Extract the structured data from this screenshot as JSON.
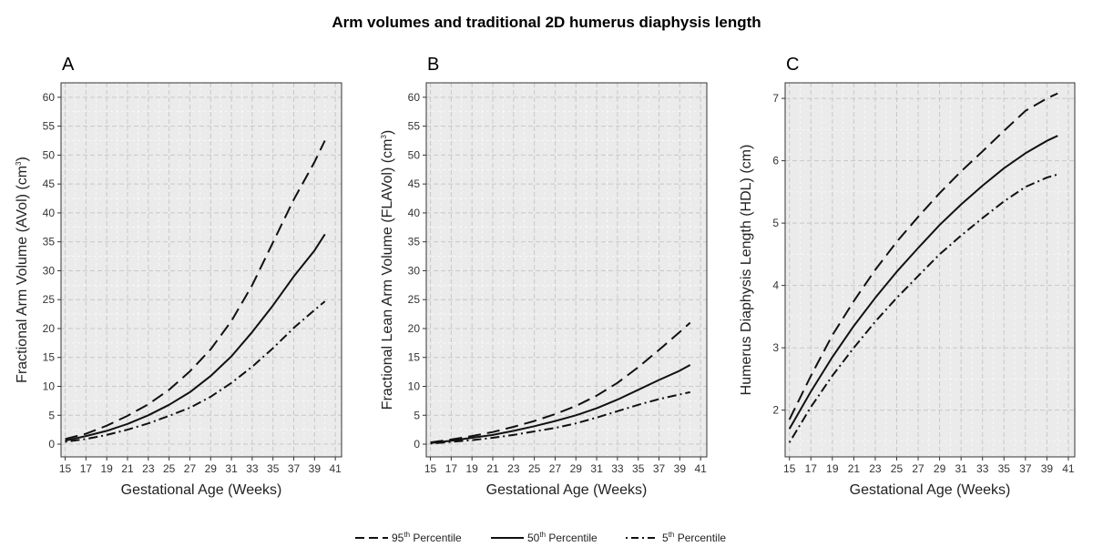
{
  "figure": {
    "title": "Arm volumes and traditional 2D humerus diaphysis length"
  },
  "legend": [
    {
      "base": "95",
      "sup": "th",
      "rest": " Percentile",
      "style": "longdash"
    },
    {
      "base": "50",
      "sup": "th",
      "rest": " Percentile",
      "style": "solid"
    },
    {
      "base": "5",
      "sup": "th",
      "rest": " Percentile",
      "style": "dotdash"
    }
  ],
  "chart_data": [
    {
      "panel": "A",
      "type": "line",
      "xlabel": "Gestational Age (Weeks)",
      "ylabel_main": "Fractional Arm Volume (AVol)  (cm",
      "ylabel_sup": "3",
      "ylabel_end": ")",
      "xlim": [
        14.6,
        41.6
      ],
      "ylim": [
        -2.2,
        62.5
      ],
      "xticks": [
        15,
        17,
        19,
        21,
        23,
        25,
        27,
        29,
        31,
        33,
        35,
        37,
        39,
        41
      ],
      "yticks": [
        0,
        5,
        10,
        15,
        20,
        25,
        30,
        35,
        40,
        45,
        50,
        55,
        60
      ],
      "x": [
        15,
        17,
        19,
        21,
        23,
        25,
        27,
        29,
        31,
        33,
        35,
        37,
        39,
        40
      ],
      "series": [
        {
          "name": "95th Percentile",
          "style": "longdash",
          "values": [
            0.9,
            1.8,
            3.2,
            4.9,
            6.9,
            9.4,
            12.6,
            16.4,
            21.3,
            27.5,
            34.9,
            42.3,
            48.8,
            52.5
          ]
        },
        {
          "name": "50th Percentile",
          "style": "solid",
          "values": [
            0.6,
            1.4,
            2.3,
            3.5,
            5.0,
            6.8,
            9.0,
            11.8,
            15.2,
            19.4,
            24.0,
            29.0,
            33.5,
            36.3
          ]
        },
        {
          "name": "5th Percentile",
          "style": "dotdash",
          "values": [
            0.4,
            0.9,
            1.6,
            2.5,
            3.6,
            4.9,
            6.3,
            8.2,
            10.6,
            13.4,
            16.6,
            20.1,
            23.2,
            24.7
          ]
        }
      ]
    },
    {
      "panel": "B",
      "type": "line",
      "xlabel": "Gestational Age (Weeks)",
      "ylabel_main": "Fractional Lean Arm Volume (FLAVol) (cm",
      "ylabel_sup": "3",
      "ylabel_end": ")",
      "xlim": [
        14.6,
        41.6
      ],
      "ylim": [
        -2.2,
        62.5
      ],
      "xticks": [
        15,
        17,
        19,
        21,
        23,
        25,
        27,
        29,
        31,
        33,
        35,
        37,
        39,
        41
      ],
      "yticks": [
        0,
        5,
        10,
        15,
        20,
        25,
        30,
        35,
        40,
        45,
        50,
        55,
        60
      ],
      "x": [
        15,
        17,
        19,
        21,
        23,
        25,
        27,
        29,
        31,
        33,
        35,
        37,
        39,
        40
      ],
      "series": [
        {
          "name": "95th Percentile",
          "style": "longdash",
          "values": [
            0.3,
            0.8,
            1.4,
            2.1,
            3.0,
            4.0,
            5.2,
            6.6,
            8.4,
            10.6,
            13.3,
            16.3,
            19.4,
            21.0
          ]
        },
        {
          "name": "50th Percentile",
          "style": "solid",
          "values": [
            0.2,
            0.6,
            1.1,
            1.6,
            2.3,
            3.1,
            4.0,
            5.0,
            6.2,
            7.7,
            9.4,
            11.1,
            12.7,
            13.7
          ]
        },
        {
          "name": "5th Percentile",
          "style": "dotdash",
          "values": [
            0.1,
            0.4,
            0.7,
            1.1,
            1.6,
            2.2,
            2.8,
            3.6,
            4.6,
            5.7,
            6.8,
            7.8,
            8.6,
            9.0
          ]
        }
      ]
    },
    {
      "panel": "C",
      "type": "line",
      "xlabel": "Gestational Age (Weeks)",
      "ylabel_main": "Humerus Diaphysis Length (HDL) (cm)",
      "ylabel_sup": "",
      "ylabel_end": "",
      "xlim": [
        14.6,
        41.6
      ],
      "ylim": [
        1.25,
        7.25
      ],
      "xticks": [
        15,
        17,
        19,
        21,
        23,
        25,
        27,
        29,
        31,
        33,
        35,
        37,
        39,
        41
      ],
      "yticks": [
        2,
        3,
        4,
        5,
        6,
        7
      ],
      "x": [
        15,
        17,
        19,
        21,
        23,
        25,
        27,
        29,
        31,
        33,
        35,
        37,
        39,
        40
      ],
      "series": [
        {
          "name": "95th Percentile",
          "style": "longdash",
          "values": [
            1.85,
            2.55,
            3.2,
            3.75,
            4.25,
            4.7,
            5.1,
            5.48,
            5.83,
            6.15,
            6.48,
            6.8,
            7.0,
            7.08
          ]
        },
        {
          "name": "50th Percentile",
          "style": "solid",
          "values": [
            1.7,
            2.3,
            2.85,
            3.35,
            3.8,
            4.22,
            4.6,
            4.97,
            5.3,
            5.6,
            5.88,
            6.12,
            6.32,
            6.4
          ]
        },
        {
          "name": "5th Percentile",
          "style": "dotdash",
          "values": [
            1.48,
            2.05,
            2.55,
            3.0,
            3.42,
            3.8,
            4.15,
            4.5,
            4.8,
            5.08,
            5.35,
            5.58,
            5.73,
            5.78
          ]
        }
      ]
    }
  ]
}
